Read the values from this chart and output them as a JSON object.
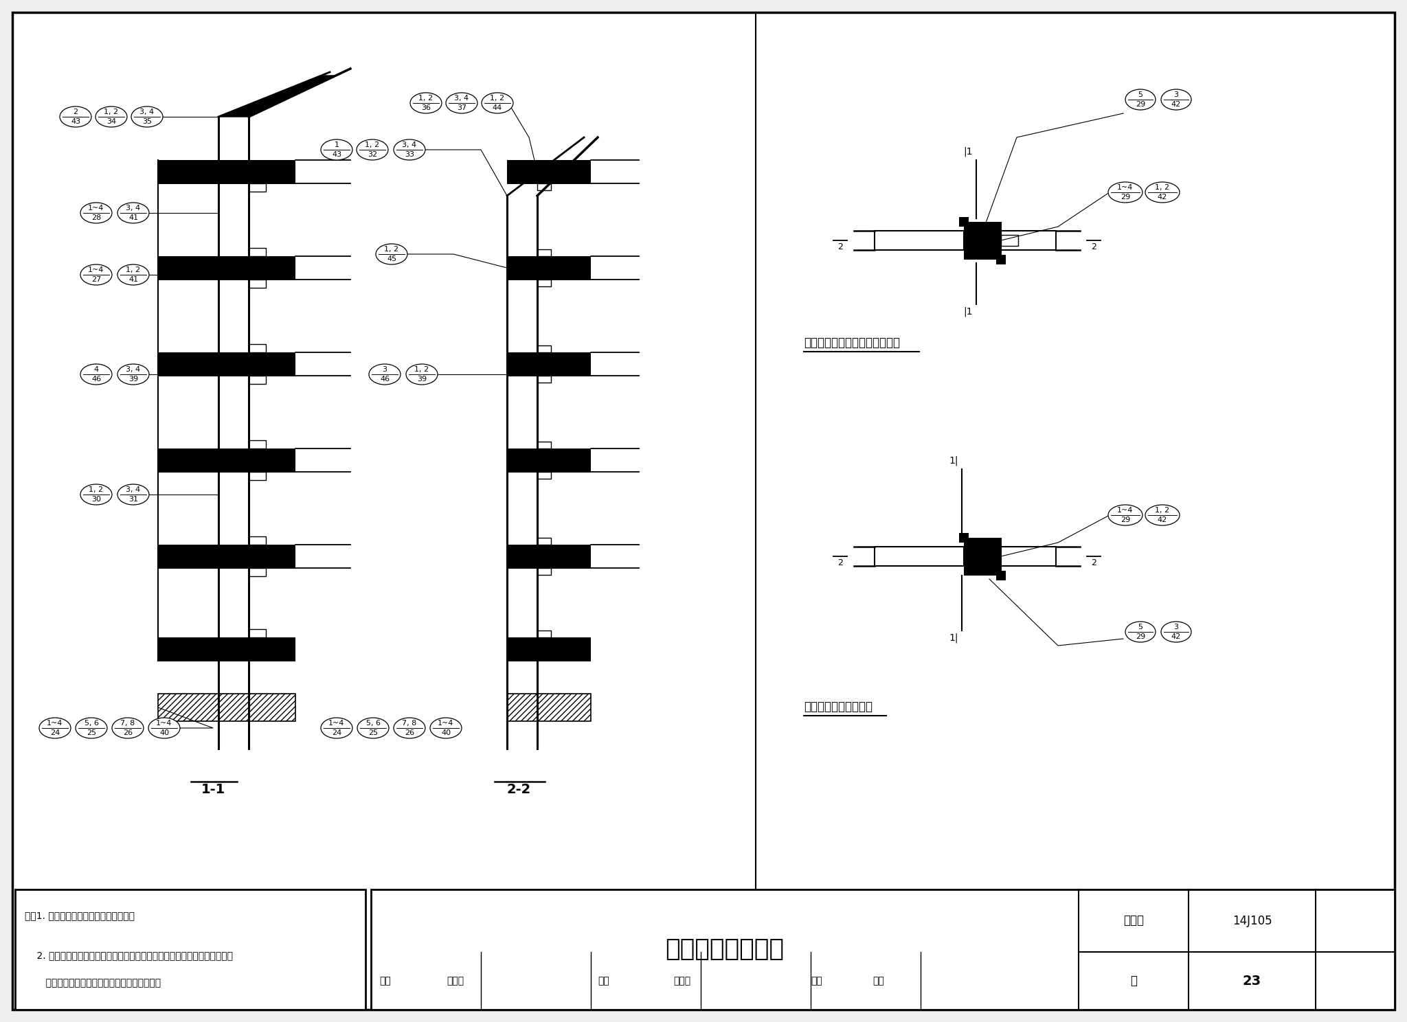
{
  "title": "平面、剖面索引图",
  "fig_num": "14J105",
  "page": "23",
  "note_line1": "注：1. 索引图剖面以框架结构形式绘制。",
  "note_line2": "    2. 后面详图绘制了墙体与柱外平、墙体半包柱、墙体全包柱时的节点构造，",
  "note_line3": "       本索引图仅表示后面详图所引出的墙体部位。",
  "section_label_11": "1-1",
  "section_label_22": "2-2",
  "plan_example_1": "平面示例一（半包柱、全包柱）",
  "plan_example_2": "平面示例二（外露柱）",
  "fig_num_label": "图集号",
  "page_label": "页",
  "review_label": "审核",
  "review_name": "王平山",
  "check_label": "校对",
  "check_name": "孙燕心",
  "design_label": "设计",
  "design_name": "燕艳",
  "bg_color": "#eeeeec",
  "white": "#ffffff",
  "black": "#000000"
}
